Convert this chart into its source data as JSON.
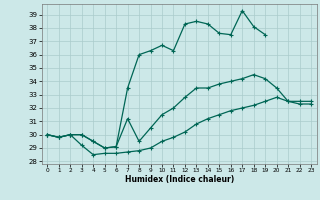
{
  "bg_color": "#cce8e8",
  "grid_color": "#aacccc",
  "line_color": "#006655",
  "xlim": [
    -0.5,
    23.5
  ],
  "ylim": [
    27.8,
    39.8
  ],
  "xticks": [
    0,
    1,
    2,
    3,
    4,
    5,
    6,
    7,
    8,
    9,
    10,
    11,
    12,
    13,
    14,
    15,
    16,
    17,
    18,
    19,
    20,
    21,
    22,
    23
  ],
  "yticks": [
    28,
    29,
    30,
    31,
    32,
    33,
    34,
    35,
    36,
    37,
    38,
    39
  ],
  "xlabel": "Humidex (Indice chaleur)",
  "curve_top_x": [
    0,
    1,
    2,
    3,
    4,
    5,
    6,
    7,
    8,
    9,
    10,
    11,
    12,
    13,
    14,
    15,
    16,
    17,
    18,
    19,
    20,
    21
  ],
  "curve_top_y": [
    30.0,
    29.8,
    30.0,
    30.0,
    29.5,
    29.0,
    29.1,
    33.5,
    36.0,
    36.3,
    36.7,
    36.3,
    38.3,
    38.5,
    38.3,
    37.6,
    37.5,
    39.3,
    38.1,
    37.5,
    null,
    null
  ],
  "curve_mid_x": [
    0,
    1,
    2,
    3,
    4,
    5,
    6,
    7,
    8,
    9,
    10,
    11,
    12,
    13,
    14,
    15,
    16,
    17,
    18,
    19,
    20,
    21,
    22,
    23
  ],
  "curve_mid_y": [
    30.0,
    29.8,
    30.0,
    30.0,
    29.5,
    29.0,
    29.1,
    31.2,
    29.5,
    30.5,
    31.5,
    32.0,
    32.8,
    33.5,
    33.5,
    33.8,
    34.0,
    34.2,
    34.5,
    34.2,
    33.5,
    32.5,
    32.5,
    32.5
  ],
  "curve_bot_x": [
    0,
    1,
    2,
    3,
    4,
    5,
    6,
    7,
    8,
    9,
    10,
    11,
    12,
    13,
    14,
    15,
    16,
    17,
    18,
    19,
    20,
    21,
    22,
    23
  ],
  "curve_bot_y": [
    30.0,
    29.8,
    30.0,
    29.2,
    28.5,
    28.6,
    28.6,
    28.7,
    28.8,
    29.0,
    29.5,
    29.8,
    30.2,
    30.8,
    31.2,
    31.5,
    31.8,
    32.0,
    32.2,
    32.5,
    32.8,
    32.5,
    32.3,
    32.3
  ]
}
